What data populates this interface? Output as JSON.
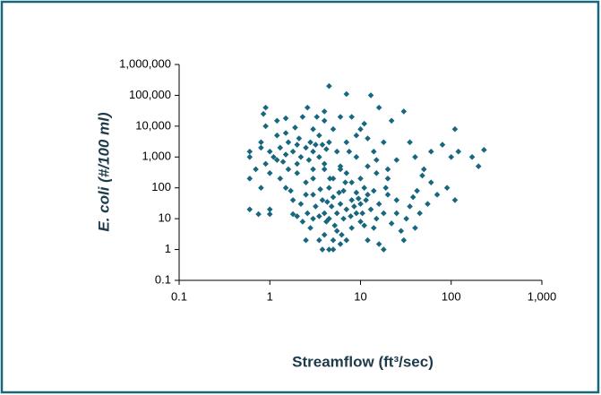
{
  "chart_data": {
    "type": "scatter",
    "xlabel": "Streamflow (ft³/sec)",
    "ylabel": "E. coli (#/100 ml)",
    "log_x": true,
    "log_y": true,
    "grid": false,
    "color": "#17677f",
    "xlim": [
      0.1,
      1000
    ],
    "xticks": [
      0.1,
      1,
      10,
      100,
      {
        "value": 1000,
        "label": "1,000"
      }
    ],
    "ylim": [
      0.1,
      1000000
    ],
    "yticks": [
      0.1,
      1,
      10,
      100,
      {
        "value": 1000,
        "label": "1,000"
      },
      {
        "value": 10000,
        "label": "10,000"
      },
      {
        "value": 100000,
        "label": "100,000"
      },
      {
        "value": 1000000,
        "label": "1,000,000"
      }
    ],
    "x": [
      0.6,
      0.6,
      0.6,
      0.6,
      0.7,
      0.75,
      0.8,
      0.8,
      0.85,
      0.9,
      0.9,
      0.8,
      0.9,
      1,
      1,
      1,
      1,
      1.1,
      1.2,
      1.2,
      1.2,
      1.3,
      1.3,
      1.4,
      1.5,
      1.5,
      1.5,
      1.6,
      1.6,
      1.7,
      1.8,
      1.8,
      1.9,
      2,
      2,
      2,
      2.1,
      2.2,
      2.3,
      2.5,
      2.5,
      2.6,
      2.7,
      2.8,
      3,
      3,
      3,
      3.2,
      3.3,
      3.5,
      3.5,
      3.8,
      4,
      4,
      4,
      4.2,
      4.5,
      4.5,
      4.6,
      5,
      5.5,
      6,
      6,
      7,
      7,
      7.5,
      8,
      9,
      10,
      11,
      12,
      13,
      14,
      15,
      16,
      18,
      20,
      22,
      25,
      30,
      35,
      40,
      60,
      80,
      110,
      120,
      170,
      200,
      230,
      100,
      90,
      110,
      70,
      60,
      50,
      55,
      45,
      40,
      30,
      25,
      20,
      18,
      15,
      13,
      12,
      12,
      11,
      10,
      10,
      10,
      9,
      9,
      9,
      8,
      8,
      8,
      7,
      7,
      7,
      6.5,
      6.5,
      6,
      6,
      6,
      5.5,
      5.5,
      5,
      5,
      5,
      5,
      4.8,
      4.5,
      4.5,
      4.5,
      4.2,
      4,
      4,
      4,
      3.8,
      3.5,
      3.5,
      3.2,
      3,
      3,
      3,
      2.8,
      2.6,
      2.5,
      2.3,
      2.2,
      2,
      2.5,
      1.8,
      1.5,
      14,
      16,
      18,
      20,
      22,
      25,
      28,
      32,
      35,
      38,
      42,
      48,
      14,
      15,
      12,
      11,
      16,
      19,
      3.8,
      5.2,
      6.2,
      7.8,
      8.5,
      9.5,
      10.5,
      11.5,
      6.8,
      5.8,
      4.3,
      3.6
    ],
    "values": [
      1000,
      1500,
      200,
      20,
      400,
      14,
      100,
      2000,
      25000,
      40000,
      10000,
      3000,
      600,
      1500,
      300,
      20,
      14,
      1000,
      800,
      5000,
      15000,
      2000,
      200,
      700,
      1200,
      6000,
      18000,
      3000,
      400,
      80,
      1500,
      14,
      9000,
      2500,
      600,
      300,
      4000,
      1000,
      20000,
      2000,
      60,
      40000,
      800,
      3000,
      1500,
      400,
      8000,
      2500,
      20000,
      1000,
      5000,
      2500,
      30000,
      15000,
      600,
      1800,
      200000,
      3000,
      200,
      8000,
      1500,
      20000,
      400,
      110000,
      3000,
      1500,
      20000,
      5000,
      8000,
      12000,
      4000,
      100000,
      1500,
      800,
      40000,
      3000,
      400,
      15000,
      800,
      30000,
      3000,
      1000,
      1500,
      2500,
      8000,
      1500,
      1000,
      500,
      1700,
      1000,
      100,
      40,
      60,
      150,
      400,
      30,
      15,
      5,
      2,
      40,
      200,
      1,
      10,
      20,
      60,
      500,
      100,
      30,
      8,
      200,
      70,
      15,
      1000,
      40,
      5,
      150,
      300,
      20,
      2,
      10,
      80,
      1.5,
      30,
      500,
      15,
      4,
      2,
      50,
      200,
      1,
      25,
      1,
      10,
      100,
      8,
      15,
      3,
      400,
      40,
      12,
      2,
      25,
      10,
      60,
      200,
      5,
      15,
      2,
      8,
      30,
      12,
      150,
      40,
      100,
      5,
      30,
      15,
      60,
      7,
      15,
      4,
      10,
      25,
      50,
      80,
      250,
      80,
      300,
      2,
      6,
      1.5,
      100,
      1,
      6,
      3,
      12,
      25,
      45,
      15,
      40,
      150,
      70,
      35,
      90
    ]
  }
}
